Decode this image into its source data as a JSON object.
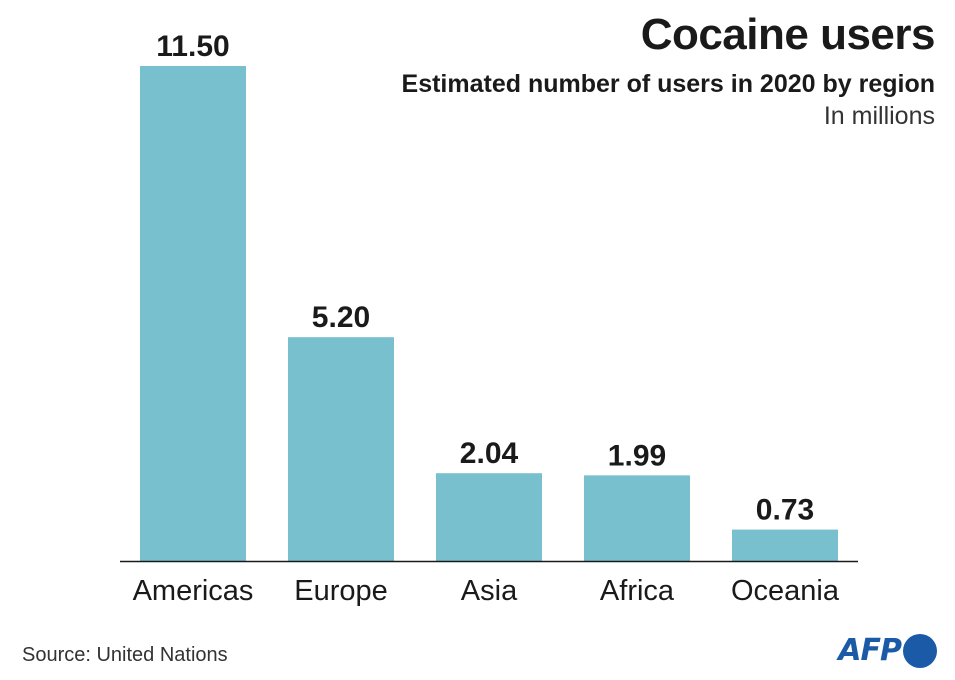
{
  "header": {
    "title": "Cocaine users",
    "subtitle": "Estimated number of users in 2020 by region",
    "unit_note": "In millions"
  },
  "footer": {
    "source": "Source: United Nations",
    "logo_text": "AFP"
  },
  "colors": {
    "bar": "#79c0cf",
    "axis": "#1a1a1a",
    "logo": "#1b5aa6"
  },
  "chart_data": {
    "type": "bar",
    "title": "Cocaine users",
    "subtitle": "Estimated number of users in 2020 by region",
    "ylabel": "In millions",
    "categories": [
      "Americas",
      "Europe",
      "Asia",
      "Africa",
      "Oceania"
    ],
    "values": [
      11.5,
      5.2,
      2.04,
      1.99,
      0.73
    ],
    "value_labels": [
      "11.50",
      "5.20",
      "2.04",
      "1.99",
      "0.73"
    ],
    "ylim": [
      0,
      11.5
    ],
    "grid": false,
    "legend": "none"
  }
}
